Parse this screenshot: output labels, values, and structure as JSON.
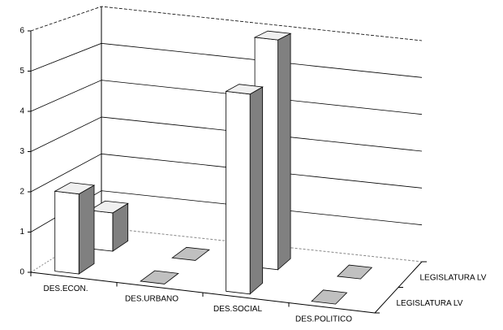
{
  "chart_data": {
    "type": "bar3d",
    "categories": [
      "DES.ECON.",
      "DES.URBANO",
      "DES.SOCIAL",
      "DES.POLITICO"
    ],
    "series": [
      {
        "name": "LEGISLATURA  LV",
        "color": "#ffffff",
        "values": [
          2,
          0,
          5,
          0
        ]
      },
      {
        "name": "LEGISLATURA  LV",
        "color": "#ffffff",
        "values": [
          1,
          0,
          6,
          0
        ]
      }
    ],
    "ylim": [
      0,
      6
    ],
    "yticks": [
      0,
      1,
      2,
      3,
      4,
      5,
      6
    ],
    "grid": true
  }
}
